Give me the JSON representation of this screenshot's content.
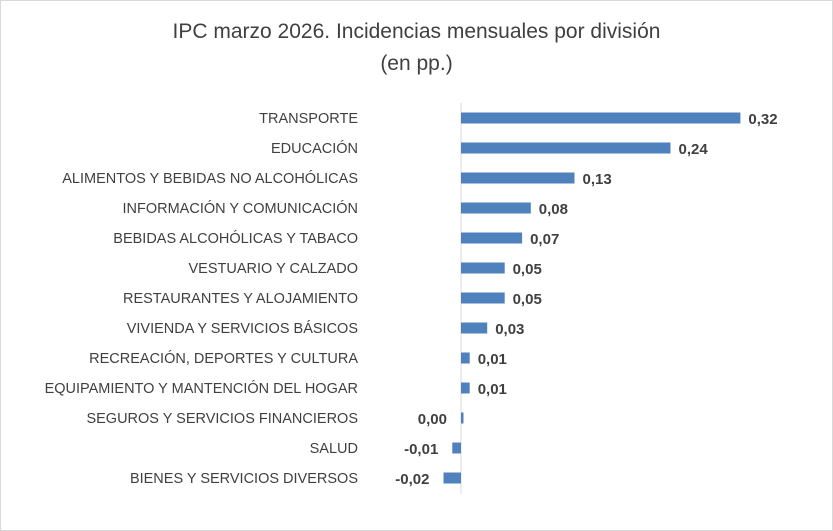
{
  "chart_data": {
    "type": "bar",
    "orientation": "horizontal",
    "title": "IPC marzo 2026. Incidencias mensuales por división",
    "subtitle": "(en pp.)",
    "categories": [
      "TRANSPORTE",
      "EDUCACIÓN",
      "ALIMENTOS Y BEBIDAS NO ALCOHÓLICAS",
      "INFORMACIÓN Y COMUNICACIÓN",
      "BEBIDAS ALCOHÓLICAS Y TABACO",
      "VESTUARIO Y CALZADO",
      "RESTAURANTES Y ALOJAMIENTO",
      "VIVIENDA Y SERVICIOS BÁSICOS",
      "RECREACIÓN, DEPORTES Y CULTURA",
      "EQUIPAMIENTO Y MANTENCIÓN DEL HOGAR",
      "SEGUROS Y SERVICIOS FINANCIEROS",
      "SALUD",
      "BIENES Y SERVICIOS DIVERSOS"
    ],
    "values": [
      0.32,
      0.24,
      0.13,
      0.08,
      0.07,
      0.05,
      0.05,
      0.03,
      0.01,
      0.01,
      0.0,
      -0.01,
      -0.02
    ],
    "value_labels": [
      "0,32",
      "0,24",
      "0,13",
      "0,08",
      "0,07",
      "0,05",
      "0,05",
      "0,03",
      "0,01",
      "0,01",
      "0,00",
      "-0,01",
      "-0,02"
    ],
    "xlim": [
      -0.02,
      0.32
    ],
    "xlabel": "",
    "ylabel": "",
    "grid": false,
    "legend": "none",
    "bar_color": "#4f81bd",
    "axis_color": "#d9d9d9"
  }
}
